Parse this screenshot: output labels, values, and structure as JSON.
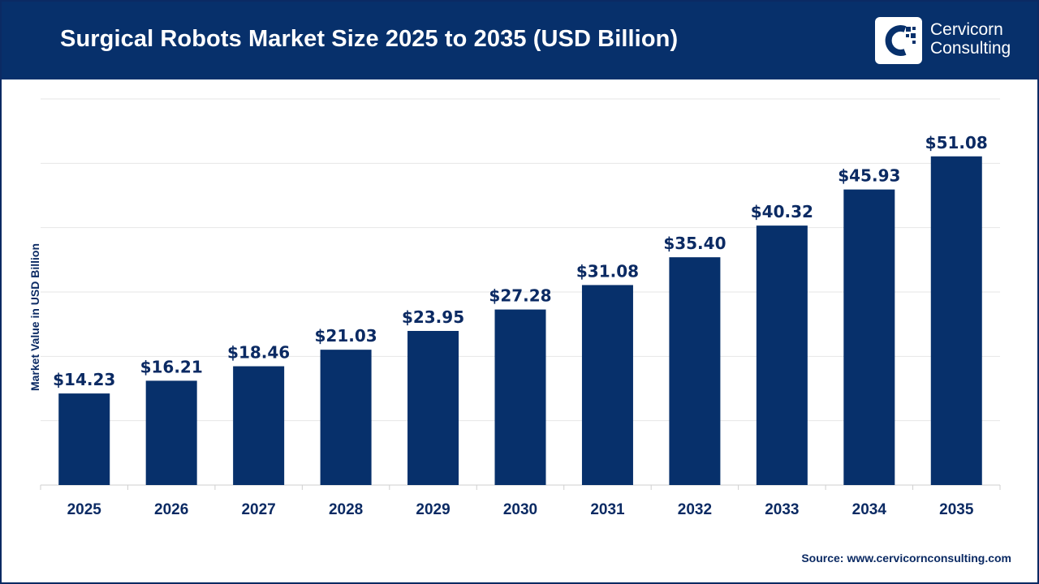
{
  "header": {
    "title": "Surgical Robots Market Size 2025 to 2035 (USD Billion)",
    "brand_line1": "Cervicorn",
    "brand_line2": "Consulting",
    "brand_icon": "cervicorn-logo-icon"
  },
  "colors": {
    "header_bg": "#07306b",
    "bar": "#07306b",
    "text": "#0b2a63",
    "grid": "#e6e6e6"
  },
  "source": {
    "label": "Source:",
    "url": "www.cervicornconsulting.com"
  },
  "chart_data": {
    "type": "bar",
    "title": "Surgical Robots Market Size 2025 to 2035 (USD Billion)",
    "xlabel": "",
    "ylabel": "Market Value in USD Billion",
    "categories": [
      "2025",
      "2026",
      "2027",
      "2028",
      "2029",
      "2030",
      "2031",
      "2032",
      "2033",
      "2034",
      "2035"
    ],
    "values": [
      14.23,
      16.21,
      18.46,
      21.03,
      23.95,
      27.28,
      31.08,
      35.4,
      40.32,
      45.93,
      51.08
    ],
    "data_labels": [
      "$14.23",
      "$16.21",
      "$18.46",
      "$21.03",
      "$23.95",
      "$27.28",
      "$31.08",
      "$35.40",
      "$40.32",
      "$45.93",
      "$51.08"
    ],
    "ylim": [
      0,
      60
    ],
    "grid": true,
    "legend": "none"
  }
}
